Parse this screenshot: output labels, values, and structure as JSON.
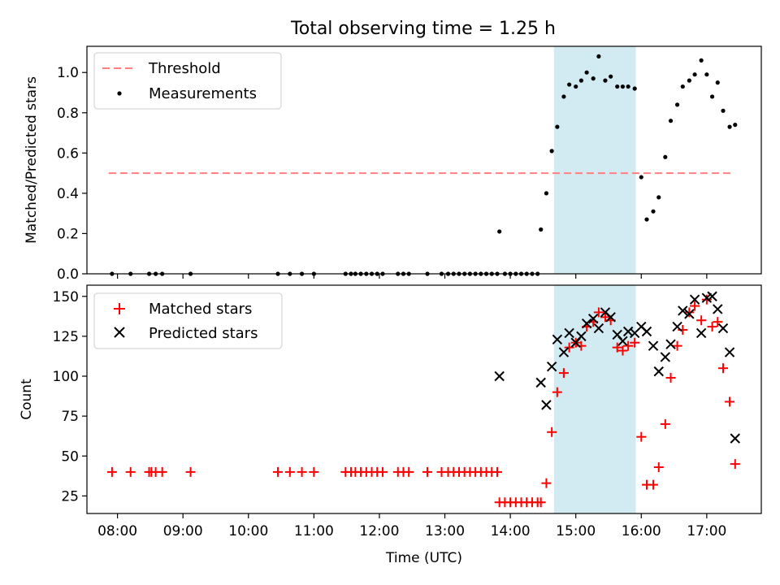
{
  "figure": {
    "title": "Total observing time = 1.25 h"
  },
  "chart_data": [
    {
      "type": "scatter",
      "ylabel": "Matched/Predicted stars",
      "ylim": [
        0,
        1.13
      ],
      "yticks": [
        0.0,
        0.2,
        0.4,
        0.6,
        0.8,
        1.0
      ],
      "ytick_labels": [
        "0.0",
        "0.2",
        "0.4",
        "0.6",
        "0.8",
        "1.0"
      ],
      "xlim": [
        "07:32",
        "17:50"
      ],
      "highlight_span": {
        "x": [
          "14:40",
          "15:55"
        ],
        "color": "#add8e6"
      },
      "threshold": {
        "y": 0.5,
        "x": [
          "07:52",
          "17:22"
        ],
        "color": "#ff8080"
      },
      "legend": {
        "position": "upper left",
        "entries": [
          {
            "label": "Threshold",
            "marker": "dashed-line",
            "color": "#ff8080"
          },
          {
            "label": "Measurements",
            "marker": "dot",
            "color": "#000000"
          }
        ]
      },
      "series": [
        {
          "name": "Measurements",
          "color": "#000000",
          "points": [
            [
              "07:55",
              0
            ],
            [
              "08:12",
              0
            ],
            [
              "08:29",
              0
            ],
            [
              "08:35",
              0
            ],
            [
              "08:41",
              0
            ],
            [
              "09:07",
              0
            ],
            [
              "10:27",
              0
            ],
            [
              "10:38",
              0
            ],
            [
              "10:49",
              0
            ],
            [
              "11:00",
              0
            ],
            [
              "11:29",
              0
            ],
            [
              "11:34",
              0
            ],
            [
              "11:38",
              0
            ],
            [
              "11:43",
              0
            ],
            [
              "11:48",
              0
            ],
            [
              "11:53",
              0
            ],
            [
              "11:58",
              0
            ],
            [
              "12:03",
              0
            ],
            [
              "12:17",
              0
            ],
            [
              "12:22",
              0
            ],
            [
              "12:27",
              0
            ],
            [
              "12:44",
              0
            ],
            [
              "12:57",
              0
            ],
            [
              "13:03",
              0
            ],
            [
              "13:08",
              0
            ],
            [
              "13:13",
              0
            ],
            [
              "13:18",
              0
            ],
            [
              "13:23",
              0
            ],
            [
              "13:28",
              0
            ],
            [
              "13:33",
              0
            ],
            [
              "13:38",
              0
            ],
            [
              "13:43",
              0
            ],
            [
              "13:48",
              0
            ],
            [
              "13:50",
              0.21
            ],
            [
              "13:55",
              0
            ],
            [
              "14:00",
              0
            ],
            [
              "14:05",
              0
            ],
            [
              "14:10",
              0
            ],
            [
              "14:15",
              0
            ],
            [
              "14:20",
              0
            ],
            [
              "14:25",
              0
            ],
            [
              "14:28",
              0.22
            ],
            [
              "14:33",
              0.4
            ],
            [
              "14:38",
              0.61
            ],
            [
              "14:43",
              0.73
            ],
            [
              "14:49",
              0.88
            ],
            [
              "14:54",
              0.94
            ],
            [
              "15:00",
              0.93
            ],
            [
              "15:05",
              0.96
            ],
            [
              "15:10",
              1.0
            ],
            [
              "15:16",
              0.97
            ],
            [
              "15:21",
              1.08
            ],
            [
              "15:27",
              0.96
            ],
            [
              "15:32",
              0.98
            ],
            [
              "15:38",
              0.93
            ],
            [
              "15:43",
              0.93
            ],
            [
              "15:48",
              0.93
            ],
            [
              "15:54",
              0.92
            ],
            [
              "16:00",
              0.48
            ],
            [
              "16:05",
              0.27
            ],
            [
              "16:11",
              0.31
            ],
            [
              "16:16",
              0.38
            ],
            [
              "16:22",
              0.58
            ],
            [
              "16:27",
              0.76
            ],
            [
              "16:33",
              0.84
            ],
            [
              "16:38",
              0.93
            ],
            [
              "16:44",
              0.96
            ],
            [
              "16:49",
              0.99
            ],
            [
              "16:55",
              1.06
            ],
            [
              "17:00",
              0.99
            ],
            [
              "17:05",
              0.88
            ],
            [
              "17:10",
              0.95
            ],
            [
              "17:15",
              0.81
            ],
            [
              "17:21",
              0.73
            ],
            [
              "17:26",
              0.74
            ]
          ]
        }
      ]
    },
    {
      "type": "scatter",
      "xlabel": "Time (UTC)",
      "ylabel": "Count",
      "ylim": [
        14,
        157
      ],
      "yticks": [
        25,
        50,
        75,
        100,
        125,
        150
      ],
      "ytick_labels": [
        "25",
        "50",
        "75",
        "100",
        "125",
        "150"
      ],
      "xlim": [
        "07:32",
        "17:50"
      ],
      "xticks": [
        "08:00",
        "09:00",
        "10:00",
        "11:00",
        "12:00",
        "13:00",
        "14:00",
        "15:00",
        "16:00",
        "17:00"
      ],
      "xtick_labels": [
        "08:00",
        "09:00",
        "10:00",
        "11:00",
        "12:00",
        "13:00",
        "14:00",
        "15:00",
        "16:00",
        "17:00"
      ],
      "highlight_span": {
        "x": [
          "14:40",
          "15:55"
        ],
        "color": "#add8e6"
      },
      "legend": {
        "position": "upper left",
        "entries": [
          {
            "label": "Matched stars",
            "marker": "plus",
            "color": "#ff0000"
          },
          {
            "label": "Predicted stars",
            "marker": "x",
            "color": "#000000"
          }
        ]
      },
      "series": [
        {
          "name": "Matched stars",
          "color": "#ff0000",
          "marker": "plus",
          "points": [
            [
              "07:55",
              40
            ],
            [
              "08:12",
              40
            ],
            [
              "08:29",
              40
            ],
            [
              "08:31",
              40
            ],
            [
              "08:35",
              40
            ],
            [
              "08:41",
              40
            ],
            [
              "09:07",
              40
            ],
            [
              "10:27",
              40
            ],
            [
              "10:38",
              40
            ],
            [
              "10:49",
              40
            ],
            [
              "11:00",
              40
            ],
            [
              "11:29",
              40
            ],
            [
              "11:34",
              40
            ],
            [
              "11:38",
              40
            ],
            [
              "11:43",
              40
            ],
            [
              "11:48",
              40
            ],
            [
              "11:53",
              40
            ],
            [
              "11:58",
              40
            ],
            [
              "12:03",
              40
            ],
            [
              "12:17",
              40
            ],
            [
              "12:22",
              40
            ],
            [
              "12:27",
              40
            ],
            [
              "12:44",
              40
            ],
            [
              "12:57",
              40
            ],
            [
              "13:03",
              40
            ],
            [
              "13:08",
              40
            ],
            [
              "13:13",
              40
            ],
            [
              "13:18",
              40
            ],
            [
              "13:23",
              40
            ],
            [
              "13:28",
              40
            ],
            [
              "13:33",
              40
            ],
            [
              "13:38",
              40
            ],
            [
              "13:43",
              40
            ],
            [
              "13:48",
              40
            ],
            [
              "13:50",
              21
            ],
            [
              "13:55",
              21
            ],
            [
              "14:00",
              21
            ],
            [
              "14:05",
              21
            ],
            [
              "14:10",
              21
            ],
            [
              "14:15",
              21
            ],
            [
              "14:20",
              21
            ],
            [
              "14:25",
              21
            ],
            [
              "14:28",
              21
            ],
            [
              "14:33",
              33
            ],
            [
              "14:38",
              65
            ],
            [
              "14:43",
              90
            ],
            [
              "14:49",
              102
            ],
            [
              "14:54",
              118
            ],
            [
              "15:00",
              121
            ],
            [
              "15:05",
              119
            ],
            [
              "15:10",
              131
            ],
            [
              "15:16",
              134
            ],
            [
              "15:21",
              140
            ],
            [
              "15:27",
              137
            ],
            [
              "15:32",
              135
            ],
            [
              "15:38",
              118
            ],
            [
              "15:43",
              116
            ],
            [
              "15:48",
              119
            ],
            [
              "15:54",
              121
            ],
            [
              "16:00",
              62
            ],
            [
              "16:05",
              32
            ],
            [
              "16:11",
              32
            ],
            [
              "16:16",
              43
            ],
            [
              "16:22",
              70
            ],
            [
              "16:27",
              99
            ],
            [
              "16:33",
              119
            ],
            [
              "16:38",
              129
            ],
            [
              "16:44",
              140
            ],
            [
              "16:49",
              144
            ],
            [
              "16:55",
              135
            ],
            [
              "17:00",
              148
            ],
            [
              "17:05",
              131
            ],
            [
              "17:10",
              134
            ],
            [
              "17:15",
              105
            ],
            [
              "17:21",
              84
            ],
            [
              "17:26",
              45
            ]
          ]
        },
        {
          "name": "Predicted stars",
          "color": "#000000",
          "marker": "x",
          "points": [
            [
              "13:50",
              100
            ],
            [
              "14:28",
              96
            ],
            [
              "14:33",
              82
            ],
            [
              "14:38",
              106
            ],
            [
              "14:43",
              123
            ],
            [
              "14:49",
              115
            ],
            [
              "14:54",
              127
            ],
            [
              "15:00",
              121
            ],
            [
              "15:05",
              125
            ],
            [
              "15:10",
              133
            ],
            [
              "15:16",
              136
            ],
            [
              "15:21",
              130
            ],
            [
              "15:27",
              140
            ],
            [
              "15:32",
              137
            ],
            [
              "15:38",
              126
            ],
            [
              "15:43",
              122
            ],
            [
              "15:48",
              128
            ],
            [
              "15:54",
              127
            ],
            [
              "16:00",
              131
            ],
            [
              "16:05",
              128
            ],
            [
              "16:11",
              119
            ],
            [
              "16:16",
              103
            ],
            [
              "16:22",
              112
            ],
            [
              "16:27",
              120
            ],
            [
              "16:33",
              131
            ],
            [
              "16:38",
              141
            ],
            [
              "16:44",
              139
            ],
            [
              "16:49",
              148
            ],
            [
              "16:55",
              127
            ],
            [
              "17:00",
              149
            ],
            [
              "17:05",
              150
            ],
            [
              "17:10",
              142
            ],
            [
              "17:15",
              130
            ],
            [
              "17:21",
              115
            ],
            [
              "17:26",
              61
            ]
          ]
        }
      ]
    }
  ]
}
